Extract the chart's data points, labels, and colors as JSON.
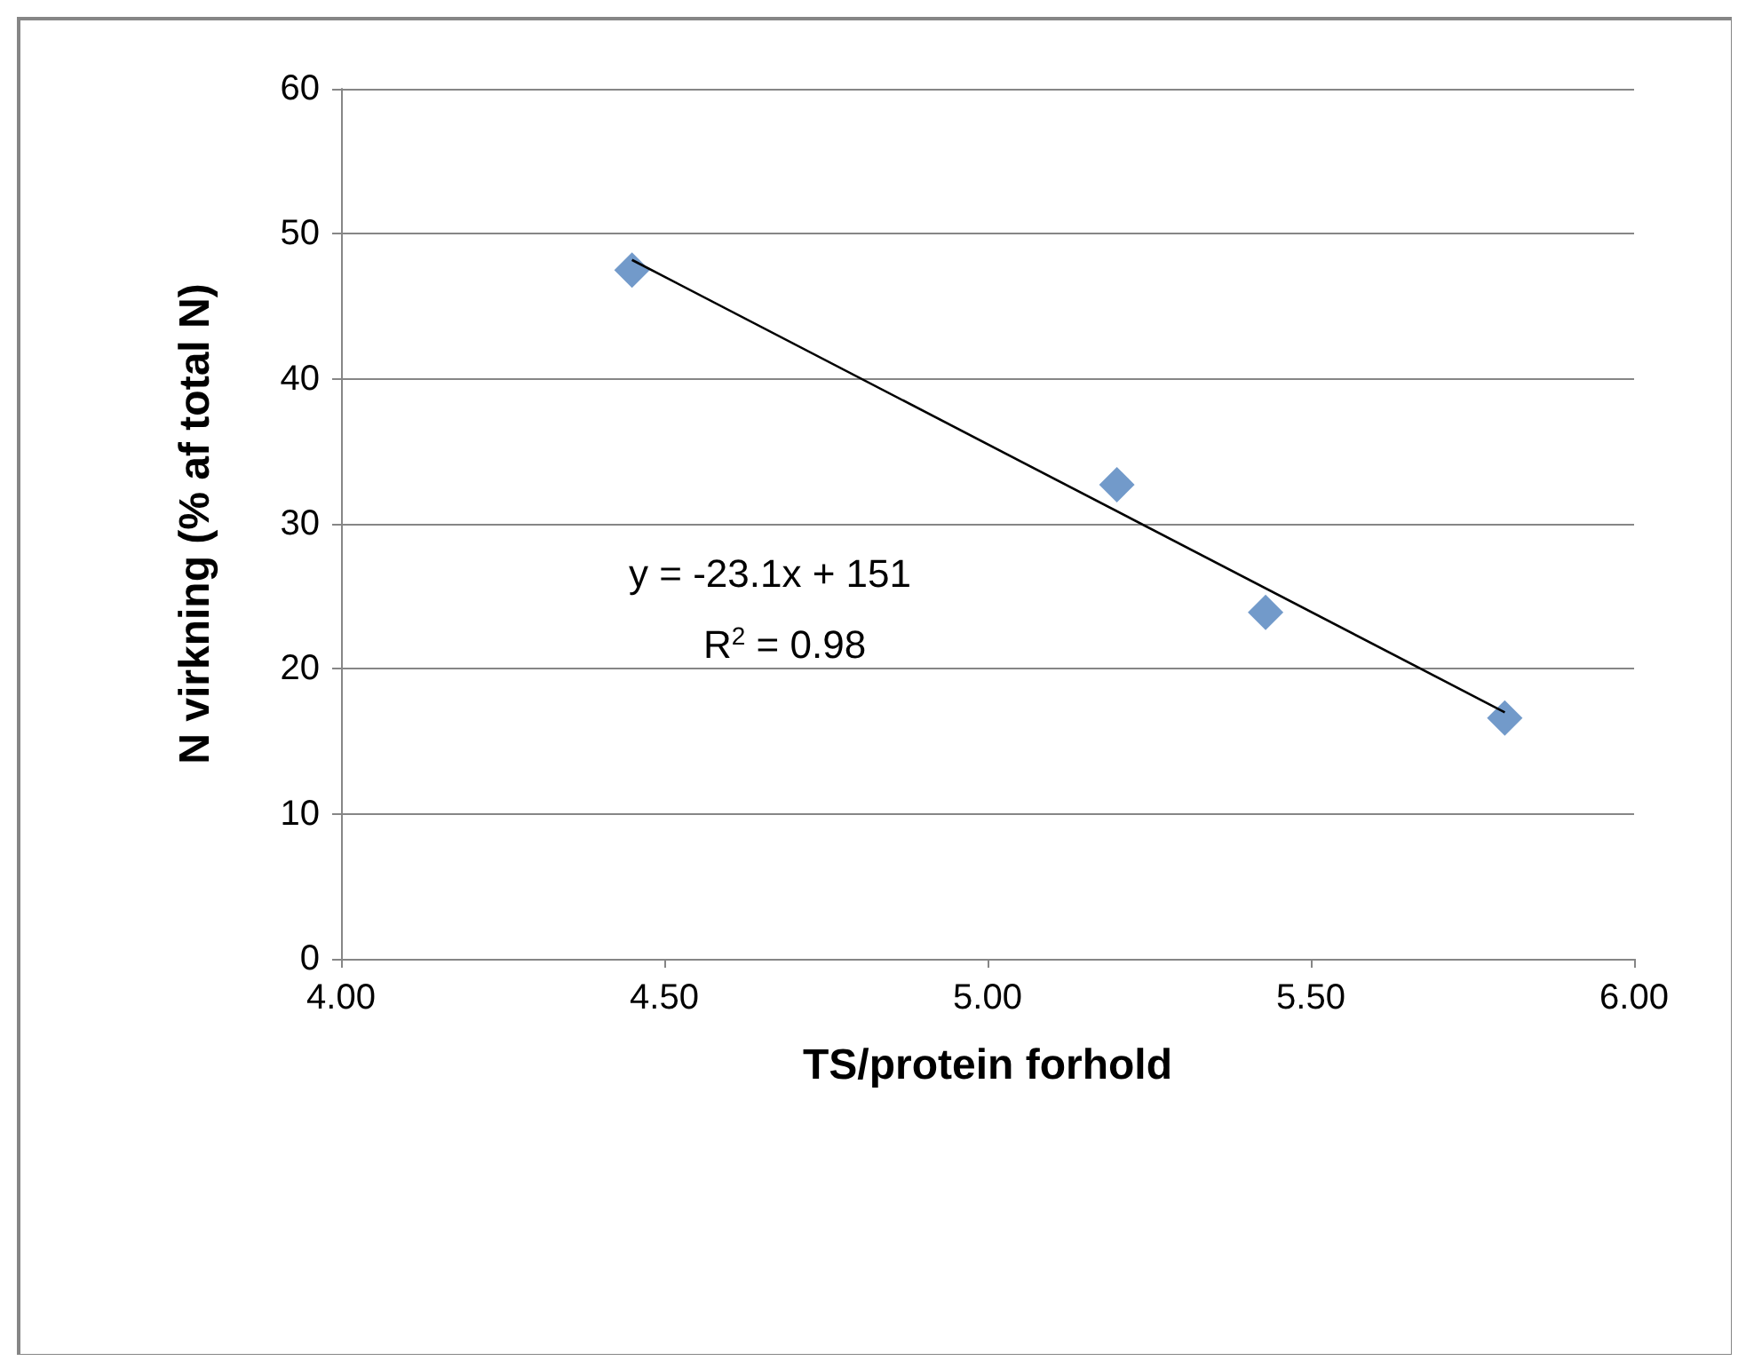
{
  "chart_data": {
    "type": "scatter",
    "xlabel": "TS/protein forhold",
    "ylabel": "N virkning (% af total N)",
    "x": [
      4.45,
      5.2,
      5.43,
      5.8
    ],
    "series": [
      {
        "color": "#4f81bd",
        "values": [
          47.5,
          32.7,
          23.9,
          16.6
        ],
        "marker": "diamond"
      },
      {
        "type": "line",
        "color": "#000000",
        "x": [
          4.45,
          5.8
        ],
        "values": [
          48.2,
          17.0
        ],
        "marker": "none"
      }
    ],
    "xlim": [
      4,
      6
    ],
    "xticks": [
      {
        "value": 4,
        "label": "4.00"
      },
      {
        "value": 4.5,
        "label": "4.50"
      },
      {
        "value": 5,
        "label": "5.00"
      },
      {
        "value": 5.5,
        "label": "5.50"
      },
      {
        "value": 6,
        "label": "6.00"
      }
    ],
    "ylim": [
      0,
      60
    ],
    "yticks": [
      0,
      10,
      20,
      30,
      40,
      50,
      60
    ],
    "annotations": [
      "y = -23.1x + 151",
      "R$^{2}$ = 0.98"
    ],
    "grid": "y"
  }
}
